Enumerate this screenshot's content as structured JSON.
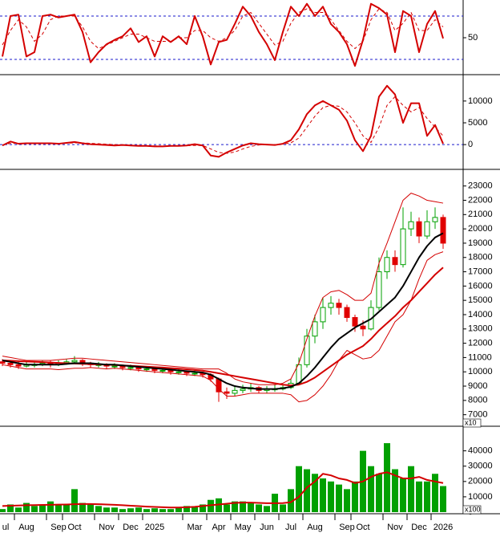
{
  "chart_data": [
    {
      "type": "line",
      "ylim": [
        0,
        100
      ],
      "yticks": [
        50
      ],
      "levels": [
        20,
        80
      ],
      "level_color": "#1a1acc",
      "series": [
        {
          "color": "#d40000",
          "line_style": "solid",
          "values": [
            24,
            80,
            82,
            24,
            30,
            80,
            82,
            78,
            80,
            82,
            58,
            16,
            30,
            41,
            47,
            52,
            63,
            44,
            52,
            24,
            52,
            44,
            52,
            41,
            80,
            52,
            13,
            44,
            47,
            69,
            93,
            80,
            58,
            41,
            19,
            58,
            93,
            80,
            97,
            80,
            93,
            69,
            58,
            41,
            11,
            47,
            97,
            91,
            82,
            30,
            87,
            80,
            30,
            69,
            87,
            49
          ]
        },
        {
          "color": "#d40000",
          "line_style": "dashed",
          "values": [
            40,
            60,
            75,
            65,
            45,
            55,
            75,
            80,
            80,
            80,
            65,
            45,
            35,
            40,
            45,
            50,
            55,
            55,
            50,
            45,
            45,
            45,
            50,
            50,
            60,
            60,
            50,
            45,
            50,
            60,
            80,
            85,
            70,
            55,
            40,
            45,
            70,
            85,
            90,
            85,
            85,
            75,
            60,
            45,
            35,
            45,
            75,
            90,
            85,
            60,
            70,
            85,
            60,
            60,
            75,
            65
          ]
        }
      ]
    },
    {
      "type": "line",
      "ylim": [
        -5500,
        15500
      ],
      "yticks": [
        0,
        5000,
        10000
      ],
      "levels": [
        0
      ],
      "level_color": "#1a1acc",
      "series": [
        {
          "color": "#d40000",
          "line_style": "solid",
          "values": [
            -200,
            700,
            200,
            300,
            300,
            300,
            300,
            200,
            400,
            600,
            300,
            100,
            0,
            -100,
            -200,
            -100,
            -200,
            -300,
            -300,
            -400,
            -400,
            -300,
            -300,
            -200,
            100,
            -200,
            -2500,
            -2800,
            -1800,
            -1000,
            -200,
            300,
            100,
            0,
            -100,
            200,
            1000,
            3500,
            7000,
            9000,
            10000,
            9000,
            8000,
            5500,
            1000,
            -1500,
            2000,
            11000,
            13500,
            11500,
            5000,
            9500,
            9500,
            2000,
            4500,
            200
          ]
        },
        {
          "color": "#d40000",
          "line_style": "dashed",
          "values": [
            -100,
            300,
            300,
            300,
            300,
            300,
            300,
            300,
            300,
            400,
            400,
            300,
            200,
            100,
            0,
            -100,
            -150,
            -200,
            -250,
            -300,
            -350,
            -350,
            -300,
            -250,
            -200,
            -200,
            -1000,
            -1800,
            -2000,
            -1700,
            -1000,
            -400,
            -100,
            0,
            0,
            100,
            400,
            1500,
            4000,
            6500,
            8500,
            9000,
            8800,
            7500,
            5000,
            2000,
            500,
            4000,
            9000,
            11000,
            9000,
            7500,
            8500,
            6000,
            4000,
            2000
          ]
        }
      ]
    },
    {
      "type": "candlestick",
      "ylim": [
        6250,
        24050
      ],
      "yticks": [
        7000,
        8000,
        9000,
        10000,
        11000,
        12000,
        13000,
        14000,
        15000,
        16000,
        17000,
        18000,
        19000,
        20000,
        21000,
        22000,
        23000
      ],
      "unit_label": "x10",
      "up_color": "#00a000",
      "down_color": "#e00000",
      "ohlc": [
        [
          10700,
          10900,
          10400,
          10600
        ],
        [
          10600,
          10800,
          10300,
          10500
        ],
        [
          10500,
          10700,
          10200,
          10400
        ],
        [
          10400,
          10700,
          10300,
          10500
        ],
        [
          10500,
          10700,
          10300,
          10500
        ],
        [
          10500,
          10800,
          10400,
          10600
        ],
        [
          10600,
          10800,
          10300,
          10500
        ],
        [
          10500,
          10800,
          10400,
          10600
        ],
        [
          10600,
          10900,
          10500,
          10700
        ],
        [
          10700,
          11100,
          10600,
          10800
        ],
        [
          10800,
          10900,
          10400,
          10600
        ],
        [
          10600,
          10700,
          10300,
          10500
        ],
        [
          10500,
          10700,
          10300,
          10500
        ],
        [
          10500,
          10600,
          10200,
          10400
        ],
        [
          10400,
          10600,
          10200,
          10400
        ],
        [
          10400,
          10500,
          10100,
          10300
        ],
        [
          10300,
          10500,
          10100,
          10300
        ],
        [
          10300,
          10400,
          10000,
          10200
        ],
        [
          10200,
          10400,
          10000,
          10200
        ],
        [
          10200,
          10300,
          9900,
          10100
        ],
        [
          10100,
          10300,
          9900,
          10100
        ],
        [
          10100,
          10200,
          9800,
          10000
        ],
        [
          10000,
          10200,
          9800,
          10000
        ],
        [
          10000,
          10100,
          9700,
          9900
        ],
        [
          9900,
          10100,
          9700,
          9900
        ],
        [
          9900,
          10000,
          9600,
          9800
        ],
        [
          9800,
          9900,
          9300,
          9500
        ],
        [
          9500,
          9600,
          7900,
          8600
        ],
        [
          8600,
          8900,
          8100,
          8500
        ],
        [
          8500,
          9000,
          8300,
          8700
        ],
        [
          8700,
          9100,
          8500,
          8800
        ],
        [
          8800,
          9200,
          8600,
          8900
        ],
        [
          8900,
          9000,
          8500,
          8700
        ],
        [
          8700,
          9000,
          8500,
          8800
        ],
        [
          8800,
          9100,
          8600,
          8800
        ],
        [
          8800,
          9100,
          8700,
          8900
        ],
        [
          8900,
          9500,
          8800,
          9200
        ],
        [
          9200,
          11000,
          9100,
          10500
        ],
        [
          10500,
          13000,
          10300,
          12500
        ],
        [
          12500,
          14000,
          12000,
          13500
        ],
        [
          13500,
          15200,
          13000,
          14500
        ],
        [
          14500,
          15300,
          14000,
          14800
        ],
        [
          14800,
          15100,
          14000,
          14500
        ],
        [
          14500,
          14700,
          13500,
          13800
        ],
        [
          13800,
          14000,
          12800,
          13200
        ],
        [
          13200,
          13600,
          12500,
          13000
        ],
        [
          13000,
          15000,
          12900,
          14500
        ],
        [
          14500,
          18000,
          14300,
          17000
        ],
        [
          17000,
          18500,
          16500,
          18000
        ],
        [
          18000,
          18500,
          17000,
          17500
        ],
        [
          17500,
          21500,
          17300,
          20000
        ],
        [
          20000,
          21200,
          19500,
          20500
        ],
        [
          20500,
          20800,
          19000,
          19500
        ],
        [
          19500,
          21300,
          19300,
          20500
        ],
        [
          20500,
          21500,
          20000,
          20800
        ],
        [
          20800,
          21000,
          18600,
          19000
        ]
      ],
      "series": [
        {
          "color": "#d40000",
          "line_style": "thin",
          "values": [
            11100,
            11000,
            10900,
            10800,
            10800,
            10800,
            10800,
            10850,
            10900,
            10950,
            10950,
            10900,
            10850,
            10800,
            10750,
            10700,
            10650,
            10600,
            10550,
            10500,
            10450,
            10400,
            10350,
            10300,
            10250,
            10200,
            10200,
            10200,
            9900,
            9500,
            9300,
            9200,
            9100,
            9100,
            9100,
            9200,
            9500,
            10600,
            12300,
            13900,
            15200,
            15600,
            15700,
            15400,
            15000,
            15000,
            15500,
            17600,
            19000,
            20500,
            22000,
            22500,
            22300,
            22000,
            21900,
            21800
          ]
        },
        {
          "color": "#d40000",
          "line_style": "thin",
          "values": [
            10500,
            10400,
            10300,
            10200,
            10200,
            10200,
            10200,
            10150,
            10200,
            10250,
            10250,
            10300,
            10250,
            10200,
            10250,
            10200,
            10150,
            10100,
            10050,
            10000,
            9950,
            9900,
            9850,
            9800,
            9750,
            9700,
            9400,
            8800,
            8300,
            8300,
            8400,
            8500,
            8500,
            8500,
            8500,
            8500,
            8400,
            7900,
            8000,
            8400,
            9000,
            9800,
            10800,
            11500,
            11200,
            10900,
            11000,
            11500,
            12500,
            13500,
            14000,
            15000,
            16500,
            17800,
            18200,
            18400
          ]
        },
        {
          "color": "#d40000",
          "line_style": "solid",
          "values": [
            10800,
            10780,
            10750,
            10720,
            10700,
            10680,
            10650,
            10620,
            10600,
            10580,
            10560,
            10540,
            10520,
            10500,
            10480,
            10450,
            10420,
            10390,
            10360,
            10330,
            10300,
            10260,
            10220,
            10180,
            10130,
            10080,
            10000,
            9900,
            9800,
            9700,
            9600,
            9500,
            9400,
            9300,
            9200,
            9100,
            9050,
            9100,
            9300,
            9600,
            10000,
            10400,
            10800,
            11200,
            11500,
            11800,
            12300,
            12900,
            13400,
            13900,
            14500,
            15000,
            15600,
            16200,
            16800,
            17300
          ]
        },
        {
          "color": "#000000",
          "line_style": "solid",
          "values": [
            10800,
            10700,
            10600,
            10500,
            10500,
            10500,
            10500,
            10500,
            10550,
            10600,
            10600,
            10600,
            10550,
            10500,
            10500,
            10450,
            10400,
            10350,
            10300,
            10250,
            10200,
            10150,
            10100,
            10050,
            10000,
            9950,
            9800,
            9500,
            9200,
            9000,
            8900,
            8850,
            8800,
            8800,
            8800,
            8850,
            8950,
            9200,
            9700,
            10300,
            11000,
            11700,
            12300,
            12700,
            13100,
            13400,
            13700,
            14200,
            14700,
            15200,
            16000,
            17000,
            18000,
            18800,
            19400,
            19700
          ]
        }
      ]
    },
    {
      "type": "bar",
      "ylim": [
        0,
        55000
      ],
      "yticks": [
        0,
        10000,
        20000,
        30000,
        40000
      ],
      "unit_label": "x100",
      "color": "#00a000",
      "categories": [
        "ul",
        null,
        null,
        "Aug",
        null,
        null,
        null,
        "Sep",
        null,
        "Oct",
        null,
        null,
        null,
        "Nov",
        null,
        null,
        "Dec",
        null,
        null,
        "2025",
        null,
        null,
        null,
        null,
        "Mar",
        null,
        null,
        "Apr",
        null,
        null,
        "May",
        null,
        null,
        "Jun",
        null,
        null,
        "Jul",
        null,
        null,
        "Aug",
        null,
        null,
        null,
        "Sep",
        null,
        "Oct",
        null,
        null,
        null,
        "Nov",
        null,
        null,
        "Dec",
        null,
        null,
        "2026"
      ],
      "values": [
        2000,
        5000,
        3000,
        6000,
        4000,
        5000,
        7000,
        5000,
        5000,
        15000,
        6000,
        5000,
        4000,
        3000,
        3000,
        2000,
        2500,
        3000,
        2000,
        2500,
        2000,
        2000,
        3000,
        4000,
        3500,
        5000,
        8000,
        9000,
        5000,
        7000,
        7000,
        6000,
        5000,
        4000,
        12000,
        5000,
        15000,
        30000,
        28000,
        25000,
        22000,
        20000,
        18000,
        15000,
        20000,
        40000,
        30000,
        25000,
        45000,
        28000,
        22000,
        30000,
        20000,
        20000,
        25000,
        17000
      ],
      "series": [
        {
          "color": "#d40000",
          "line_style": "solid",
          "values": [
            4000,
            4200,
            4300,
            4500,
            4600,
            4700,
            4800,
            4900,
            5000,
            5200,
            5300,
            5300,
            5200,
            5000,
            4800,
            4500,
            4200,
            3900,
            3600,
            3400,
            3200,
            3000,
            3000,
            3200,
            3500,
            4000,
            4500,
            5000,
            5500,
            6000,
            6200,
            6200,
            6000,
            5800,
            5800,
            5900,
            6500,
            10000,
            16000,
            20000,
            25000,
            24000,
            22000,
            21000,
            19000,
            20000,
            23000,
            25000,
            26000,
            24000,
            22000,
            22000,
            23000,
            21000,
            20000,
            19000
          ]
        }
      ]
    }
  ]
}
